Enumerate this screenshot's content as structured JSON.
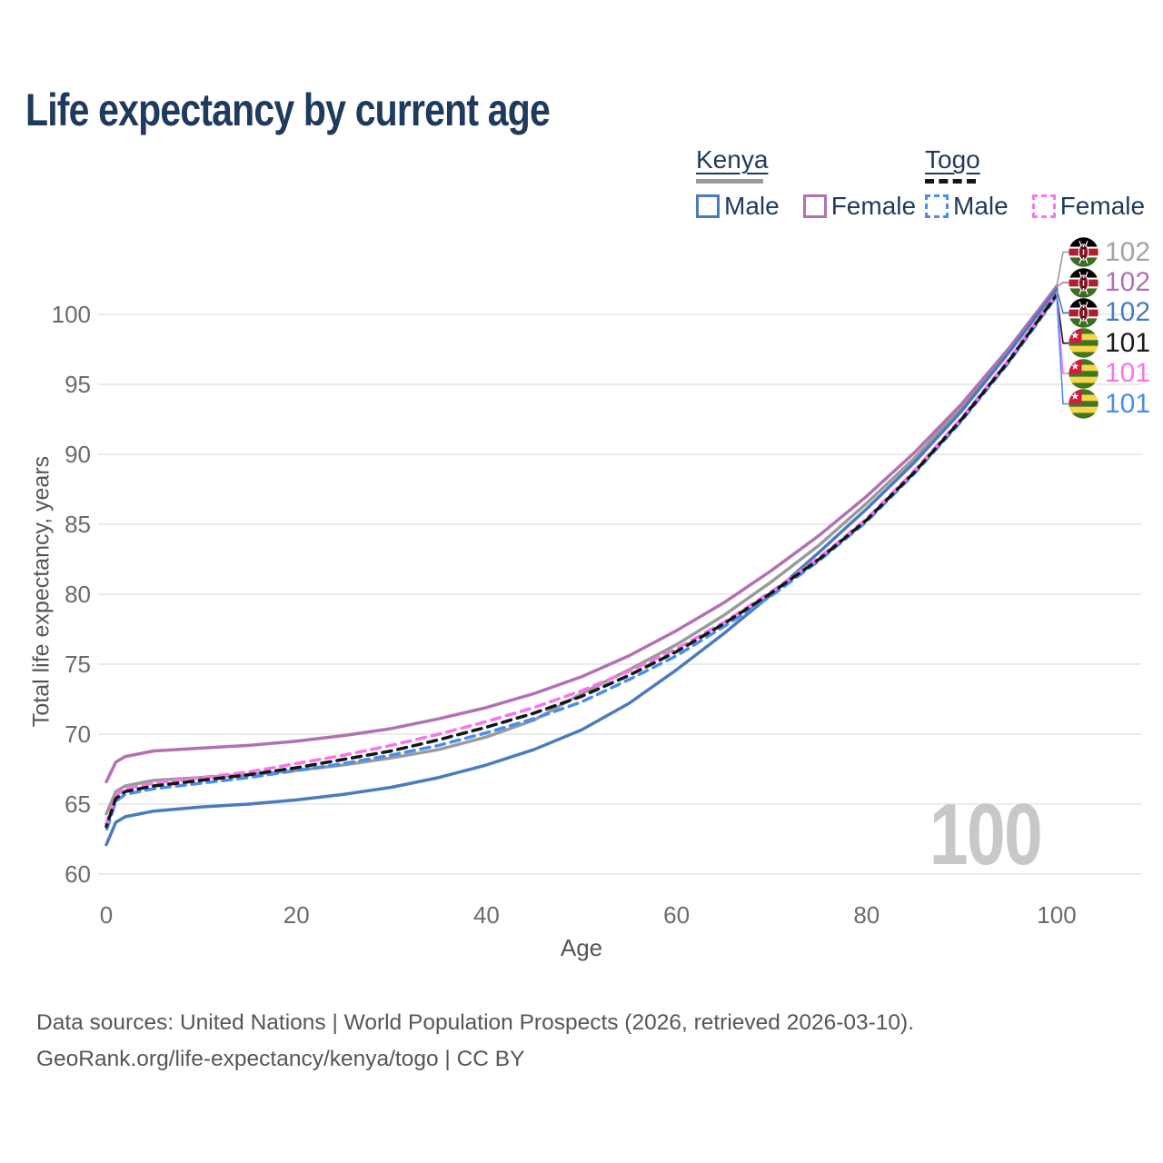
{
  "title": "Life expectancy by current age",
  "legend": {
    "kenya": {
      "label": "Kenya",
      "male": "Male",
      "female": "Female"
    },
    "togo": {
      "label": "Togo",
      "male": "Male",
      "female": "Female"
    }
  },
  "watermark": "100",
  "footer": {
    "line1": "Data sources: United Nations | World Population Prospects (2026, retrieved 2026-03-10).",
    "line2": "GeoRank.org/life-expectancy/kenya/togo | CC BY"
  },
  "colors": {
    "kenya_male": "#4c7bbd",
    "kenya_female": "#b271b3",
    "kenya_total": "#9a9a9a",
    "togo_male": "#4a8df0",
    "togo_female": "#fb74e8",
    "togo_total": "#161616",
    "grid": "#ebebeb",
    "axis_text": "#6b6b6b",
    "title_text": "#1f3a5c"
  },
  "end_labels": [
    {
      "flag": "kenya",
      "value": "102",
      "color": "#a3a3a3"
    },
    {
      "flag": "kenya",
      "value": "102",
      "color": "#b271b3"
    },
    {
      "flag": "kenya",
      "value": "102",
      "color": "#4c7bbd"
    },
    {
      "flag": "togo",
      "value": "101",
      "color": "#1c1c1c"
    },
    {
      "flag": "togo",
      "value": "101",
      "color": "#fb74e8"
    },
    {
      "flag": "togo",
      "value": "101",
      "color": "#4a8df0"
    }
  ],
  "chart_data": {
    "type": "line",
    "title": "Life expectancy by current age",
    "xlabel": "Age",
    "ylabel": "Total life expectancy, years",
    "xlim": [
      0,
      100
    ],
    "ylim": [
      60,
      103
    ],
    "xticks": [
      0,
      20,
      40,
      60,
      80,
      100
    ],
    "yticks": [
      60,
      65,
      70,
      75,
      80,
      85,
      90,
      95,
      100
    ],
    "grid": "horizontal-only",
    "legend_position": "top-right",
    "x": [
      0,
      1,
      2,
      5,
      10,
      15,
      20,
      25,
      30,
      35,
      40,
      45,
      50,
      55,
      60,
      65,
      70,
      75,
      80,
      85,
      90,
      95,
      100
    ],
    "series": [
      {
        "id": "kenya_total",
        "name": "Kenya Total",
        "color": "#9a9a9a",
        "dash": false,
        "end_label": "102",
        "row": 0,
        "values": [
          64.3,
          65.9,
          66.3,
          66.7,
          66.9,
          67.1,
          67.4,
          67.8,
          68.3,
          68.9,
          69.8,
          71.0,
          72.9,
          74.6,
          76.4,
          78.5,
          80.9,
          83.5,
          86.5,
          89.7,
          93.4,
          97.5,
          102.0
        ]
      },
      {
        "id": "kenya_female",
        "name": "Kenya Female",
        "color": "#b271b3",
        "dash": false,
        "end_label": "102",
        "row": 1,
        "values": [
          66.6,
          68.0,
          68.4,
          68.8,
          69.0,
          69.2,
          69.5,
          69.9,
          70.4,
          71.1,
          71.9,
          72.9,
          74.1,
          75.6,
          77.4,
          79.4,
          81.7,
          84.2,
          87.0,
          90.1,
          93.6,
          97.6,
          102.0
        ]
      },
      {
        "id": "kenya_male",
        "name": "Kenya Male",
        "color": "#4c7bbd",
        "dash": false,
        "end_label": "102",
        "row": 2,
        "values": [
          62.1,
          63.7,
          64.1,
          64.5,
          64.8,
          65.0,
          65.3,
          65.7,
          66.2,
          66.9,
          67.8,
          68.9,
          70.3,
          72.2,
          74.6,
          77.2,
          80.0,
          83.0,
          86.1,
          89.4,
          93.1,
          97.3,
          101.8
        ]
      },
      {
        "id": "togo_total",
        "name": "Togo Total",
        "color": "#161616",
        "dash": true,
        "end_label": "101",
        "row": 3,
        "values": [
          63.4,
          65.4,
          65.9,
          66.3,
          66.7,
          67.1,
          67.6,
          68.2,
          68.8,
          69.6,
          70.5,
          71.5,
          72.7,
          74.2,
          75.9,
          77.9,
          80.1,
          82.5,
          85.3,
          88.7,
          92.5,
          96.7,
          101.4
        ]
      },
      {
        "id": "togo_female",
        "name": "Togo Female",
        "color": "#fb74e8",
        "dash": true,
        "end_label": "101",
        "row": 4,
        "values": [
          63.6,
          65.6,
          66.1,
          66.5,
          66.9,
          67.3,
          67.9,
          68.5,
          69.2,
          70.0,
          70.9,
          71.9,
          73.1,
          74.5,
          76.1,
          78.0,
          80.2,
          82.6,
          85.4,
          88.8,
          92.6,
          96.8,
          101.5
        ]
      },
      {
        "id": "togo_male",
        "name": "Togo Male",
        "color": "#4a8df0",
        "dash": true,
        "end_label": "101",
        "row": 5,
        "values": [
          63.1,
          65.2,
          65.7,
          66.1,
          66.5,
          66.9,
          67.4,
          67.9,
          68.5,
          69.2,
          70.1,
          71.1,
          72.3,
          73.9,
          75.6,
          77.7,
          79.9,
          82.4,
          85.2,
          88.6,
          92.4,
          96.6,
          101.3
        ]
      }
    ]
  }
}
